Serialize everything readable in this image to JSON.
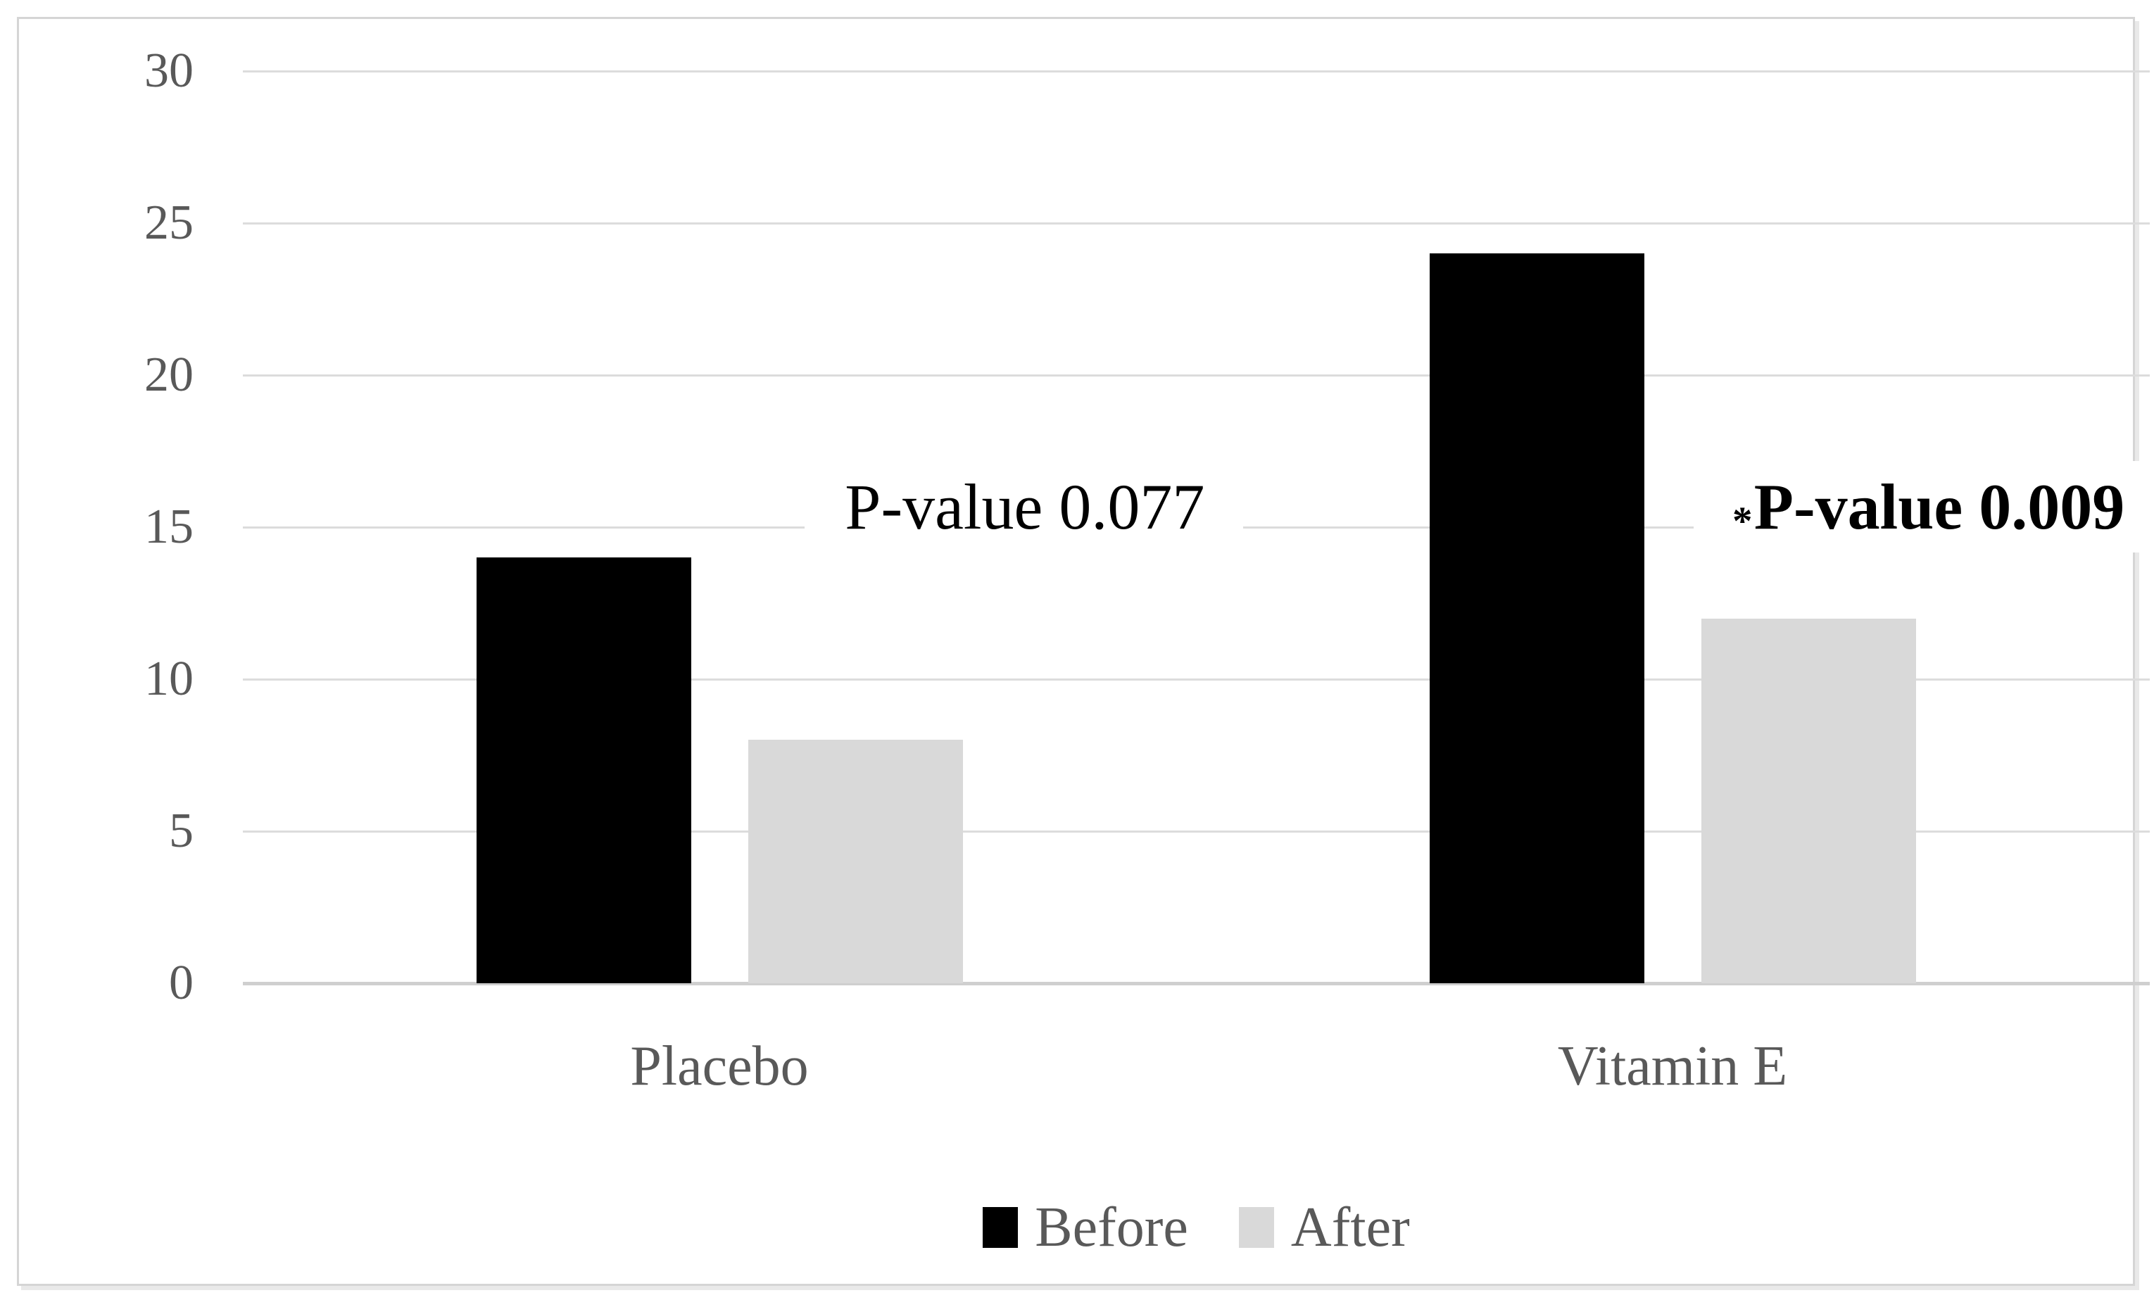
{
  "chart_data": {
    "type": "bar",
    "title": "",
    "xlabel": "",
    "ylabel": "",
    "categories": [
      "Placebo",
      "Vitamin E"
    ],
    "series": [
      {
        "name": "Before",
        "color": "#000000",
        "values": [
          14,
          24
        ]
      },
      {
        "name": "After",
        "color": "#d9d9d9",
        "values": [
          8,
          12
        ]
      }
    ],
    "y_axis": {
      "min": 0,
      "max": 30,
      "tick_interval": 5,
      "ticks": [
        30,
        25,
        20,
        15,
        10,
        5,
        0
      ]
    },
    "grid": true,
    "legend_position": "bottom",
    "annotations": [
      {
        "asterisk": "",
        "text": "P-value 0.077",
        "bold": false,
        "near_category": "Placebo"
      },
      {
        "asterisk": "*",
        "text": "P-value 0.009",
        "bold": true,
        "near_category": "Vitamin E"
      }
    ]
  },
  "colors": {
    "background": "#ffffff",
    "frame_border": "#d5d5d5",
    "gridline": "#dcdcdc",
    "axis_baseline": "#cfcfcf",
    "tick_text": "#595959",
    "category_text": "#595959",
    "legend_text": "#595959",
    "annotation_text": "#000000",
    "bar_before": "#000000",
    "bar_after": "#d9d9d9"
  }
}
